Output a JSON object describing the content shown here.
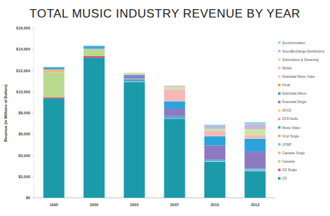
{
  "chart_data": {
    "type": "bar",
    "title": "TOTAL MUSIC INDUSTRY REVENUE BY YEAR",
    "y_label": "Revenue (in Millions of Dollars)",
    "categories": [
      "1995",
      "2000",
      "2005",
      "2007",
      "2010",
      "2012"
    ],
    "stacked": true,
    "grid": false,
    "legend": "right",
    "ylim": [
      0,
      16000
    ],
    "yticks": [
      {
        "value": 0,
        "label": "$0"
      },
      {
        "value": 2000,
        "label": "$2,000"
      },
      {
        "value": 4000,
        "label": "$4,000"
      },
      {
        "value": 6000,
        "label": "$6,000"
      },
      {
        "value": 8000,
        "label": "$8,000"
      },
      {
        "value": 10000,
        "label": "$10,000"
      },
      {
        "value": 12000,
        "label": "$12,000"
      },
      {
        "value": 14000,
        "label": "$14,000"
      },
      {
        "value": 16000,
        "label": "$16,000"
      }
    ],
    "series": [
      {
        "name": "CD",
        "color": "#1b9aaa",
        "values": [
          9377,
          13215,
          10900,
          7450,
          3400,
          2500
        ]
      },
      {
        "name": "CD Single",
        "color": "#e8546a",
        "values": [
          110,
          142,
          10,
          12,
          2,
          1
        ]
      },
      {
        "name": "Cassette",
        "color": "#b9d98e",
        "values": [
          2304,
          626,
          13,
          3,
          0,
          0
        ]
      },
      {
        "name": "Cassette Single",
        "color": "#f2b97c",
        "values": [
          236,
          4,
          0,
          0,
          0,
          0
        ]
      },
      {
        "name": "LP/EP",
        "color": "#7fc8d8",
        "values": [
          25,
          28,
          14,
          22,
          88,
          200
        ]
      },
      {
        "name": "Vinyl Single",
        "color": "#f4a56e",
        "values": [
          47,
          26,
          13,
          4,
          2,
          5
        ]
      },
      {
        "name": "Music Video",
        "color": "#41aad6",
        "values": [
          220,
          281,
          250,
          200,
          100,
          50
        ]
      },
      {
        "name": "DVD Audio",
        "color": "#c5a8d8",
        "values": [
          0,
          0,
          11,
          3,
          0,
          0
        ]
      },
      {
        "name": "SACD",
        "color": "#f3d37c",
        "values": [
          0,
          0,
          26,
          0,
          0,
          0
        ]
      },
      {
        "name": "Download Single",
        "color": "#8c7bc2",
        "values": [
          0,
          0,
          250,
          700,
          1340,
          1600
        ]
      },
      {
        "name": "Download Album",
        "color": "#2ba4de",
        "values": [
          0,
          0,
          100,
          700,
          870,
          1200
        ]
      },
      {
        "name": "Kiosk",
        "color": "#f0a242",
        "values": [
          0,
          0,
          1,
          2,
          6,
          2
        ]
      },
      {
        "name": "Download Music Video",
        "color": "#f8c7c2",
        "values": [
          0,
          0,
          2,
          15,
          25,
          20
        ]
      },
      {
        "name": "Mobile",
        "color": "#f5b8b6",
        "values": [
          0,
          0,
          100,
          1100,
          450,
          300
        ]
      },
      {
        "name": "Subscription & Streaming",
        "color": "#d0e4a8",
        "values": [
          0,
          0,
          100,
          250,
          210,
          600
        ]
      },
      {
        "name": "SoundExchange Distributions",
        "color": "#c8b4de",
        "values": [
          0,
          0,
          0,
          100,
          250,
          450
        ]
      },
      {
        "name": "Synchronization",
        "color": "#90d5e2",
        "values": [
          0,
          0,
          0,
          0,
          150,
          200
        ]
      }
    ]
  }
}
